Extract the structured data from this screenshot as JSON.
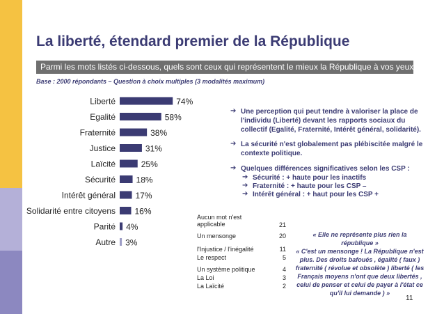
{
  "title": "La liberté, étendard premier de la République",
  "question": "Parmi les mots listés ci-dessous, quels sont ceux qui représentent le mieux la République à vos yeux ?",
  "base_note": "Base : 2000 répondants – Question à choix multiples (3 modalités maximum)",
  "chart_data": {
    "type": "bar",
    "orientation": "horizontal",
    "categories": [
      "Liberté",
      "Egalité",
      "Fraternité",
      "Justice",
      "Laïcité",
      "Sécurité",
      "Intérêt général",
      "Solidarité entre citoyens",
      "Parité",
      "Autre"
    ],
    "values": [
      74,
      58,
      38,
      31,
      25,
      18,
      17,
      16,
      4,
      3
    ],
    "value_labels": [
      "74%",
      "58%",
      "38%",
      "31%",
      "25%",
      "18%",
      "17%",
      "16%",
      "4%",
      "3%"
    ],
    "bar_colors": [
      "#3b3b73",
      "#3b3b73",
      "#3b3b73",
      "#3b3b73",
      "#3b3b73",
      "#3b3b73",
      "#3b3b73",
      "#3b3b73",
      "#3b3b73",
      "#9e9ec6"
    ],
    "xlim": [
      0,
      100
    ],
    "grid": false,
    "legend": "none"
  },
  "bullets": [
    {
      "lines": [
        "Une perception qui peut tendre à valoriser la place de",
        "l'individu (Liberté) devant les rapports sociaux du",
        "collectif (Egalité, Fraternité, Intérêt général, solidarité)."
      ]
    },
    {
      "lines": [
        "La sécurité n'est globalement pas plébiscitée malgré le",
        "contexte politique."
      ]
    },
    {
      "lines": [
        "Quelques différences significatives selon les CSP :"
      ]
    }
  ],
  "sub_bullets": [
    "Sécurité : + haute pour les inactifs",
    "Fraternité : + haute pour les CSP –",
    "Intérêt général : + haut pour les CSP +"
  ],
  "no_response": {
    "header": [
      "Aucun mot n'est",
      "applicable"
    ],
    "header_value": "21",
    "rows": [
      {
        "label": "Un mensonge",
        "value": "20"
      },
      {
        "label": "l'Injustice / l'inégalité",
        "value": "11"
      },
      {
        "label": "Le respect",
        "value": "5"
      },
      {
        "label": "Un système politique",
        "value": "4"
      },
      {
        "label": "La Loi",
        "value": "3"
      },
      {
        "label": "La Laïcité",
        "value": "2"
      }
    ]
  },
  "quote": [
    "« Elle ne représente plus rien la",
    "république »",
    "« C'est un mensonge ! La République n'est",
    "plus. Des droits bafoués , égalité ( faux )",
    "fraternité ( révolue et obsolète ) liberté ( les",
    "Français moyens n'ont que deux libertés ,",
    "celui de penser et celui de payer à l'état ce",
    "qu'il lui demande ) »"
  ],
  "page_number": "11",
  "colors": {
    "accent": "#3b3b73",
    "bar": "#3b3b73",
    "bar_other": "#9e9ec6",
    "question_bg": "#6f6f6f",
    "strip_yellow": "#f5c242",
    "strip_lavender": "#b4b0d8",
    "strip_purple": "#8c88c0"
  }
}
